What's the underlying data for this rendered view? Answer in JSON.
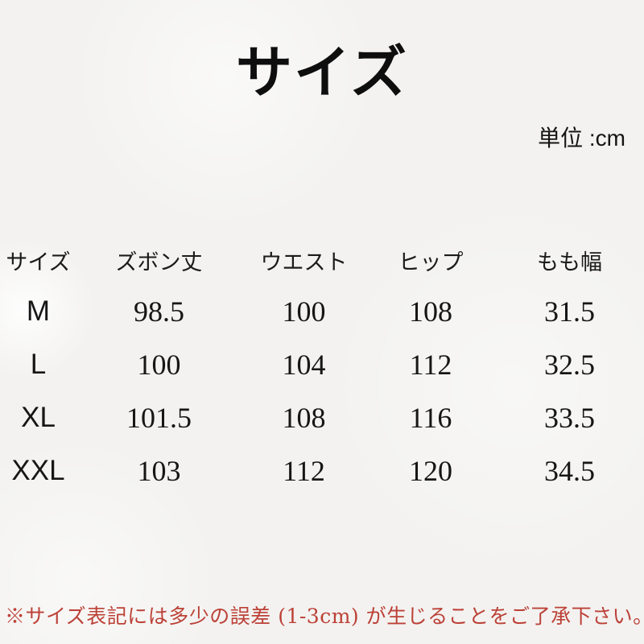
{
  "page": {
    "title": "サイズ",
    "unit_label": "単位 :cm"
  },
  "table": {
    "headers": [
      "サイズ",
      "ズボン丈",
      "ウエスト",
      "ヒップ",
      "もも幅"
    ],
    "rows": [
      {
        "label": "M",
        "values": [
          "98.5",
          "100",
          "108",
          "31.5"
        ]
      },
      {
        "label": "L",
        "values": [
          "100",
          "104",
          "112",
          "32.5"
        ]
      },
      {
        "label": "XL",
        "values": [
          "101.5",
          "108",
          "116",
          "33.5"
        ]
      },
      {
        "label": "XXL",
        "values": [
          "103",
          "112",
          "120",
          "34.5"
        ]
      }
    ]
  },
  "footer": {
    "note": "※サイズ表記には多少の誤差 (1-3cm) が生じることをご了承下さい。"
  },
  "colors": {
    "background": "#f3f2f0",
    "text": "#1d1d1d",
    "note_red": "#bc4137"
  }
}
